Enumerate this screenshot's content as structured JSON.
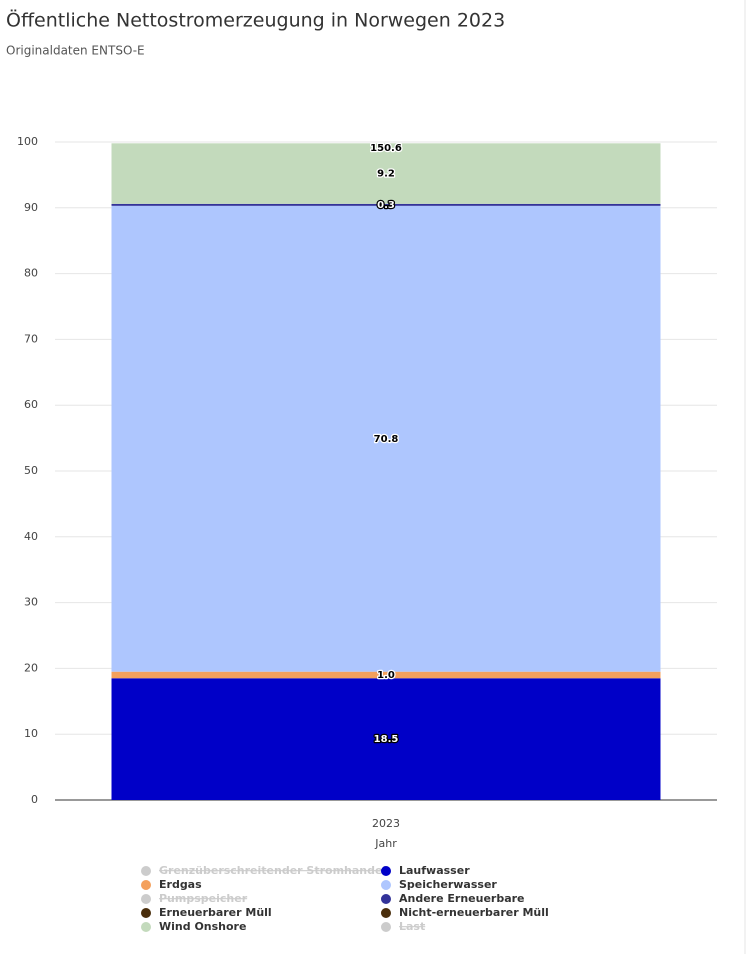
{
  "chart_data": {
    "type": "stacked_bar",
    "title": "Öffentliche Nettostromerzeugung in Norwegen 2023",
    "subtitle": "Originaldaten ENTSO-E",
    "categories": [
      "2023"
    ],
    "xlabel": "Jahr",
    "total": 150.6,
    "ylim": [
      0,
      100
    ],
    "yticks": [
      0,
      10,
      20,
      30,
      40,
      50,
      60,
      70,
      80,
      90,
      100
    ],
    "grid": true,
    "series": [
      {
        "name": "Grenzüberschreitender Stromhandel",
        "color": "#cccccc",
        "hidden": true,
        "values": [
          null
        ]
      },
      {
        "name": "Laufwasser",
        "color": "#0000c8",
        "values": [
          18.5
        ]
      },
      {
        "name": "Erdgas",
        "color": "#f4a05c",
        "values": [
          1.0
        ],
        "value_labels": [
          "1.0"
        ]
      },
      {
        "name": "Speicherwasser",
        "color": "#aec6fe",
        "values": [
          70.8
        ]
      },
      {
        "name": "Pumpspeicher",
        "color": "#cccccc",
        "hidden": true,
        "values": [
          null
        ]
      },
      {
        "name": "Andere Erneuerbare",
        "color": "#333399",
        "values": [
          0.3
        ]
      },
      {
        "name": "Erneuerbarer Müll",
        "color": "#4a2e0c",
        "values": [
          null
        ]
      },
      {
        "name": "Nicht-erneuerbarer Müll",
        "color": "#4a2e0c",
        "values": [
          null
        ]
      },
      {
        "name": "Wind Onshore",
        "color": "#c3dabc",
        "values": [
          9.2
        ]
      },
      {
        "name": "Last",
        "color": "#cccccc",
        "hidden": true,
        "values": [
          null
        ]
      }
    ]
  }
}
